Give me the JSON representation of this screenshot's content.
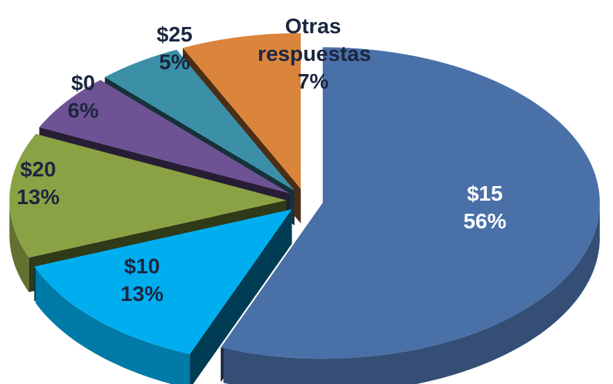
{
  "chart_data": {
    "type": "pie",
    "categories": [
      "$15",
      "$10",
      "$20",
      "$0",
      "$25",
      "Otras respuestas"
    ],
    "values": [
      56,
      13,
      13,
      6,
      5,
      7
    ],
    "value_labels": [
      "56%",
      "13%",
      "13%",
      "6%",
      "5%",
      "7%"
    ],
    "colors": [
      "#4a70a8",
      "#00aeef",
      "#8aa244",
      "#6e5394",
      "#3b90a8",
      "#da843c"
    ]
  }
}
